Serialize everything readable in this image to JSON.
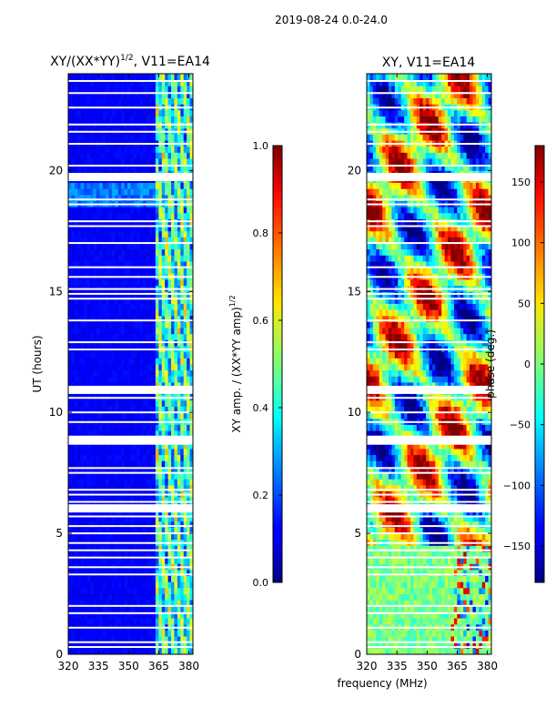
{
  "figure": {
    "suptitle": "2019-08-24 0.0-24.0",
    "xlabel": "frequency (MHz)"
  },
  "chart_data": [
    {
      "type": "heatmap",
      "title": "XY/(XX*YY)^{1/2}, V11=EA14",
      "title_main": "XY/(XX*YY)",
      "title_exp": "1/2",
      "title_tail": ", V11=EA14",
      "xlabel": "",
      "ylabel": "UT (hours)",
      "xlim": [
        320,
        382
      ],
      "ylim": [
        0,
        24
      ],
      "xticks": [
        320,
        335,
        350,
        365,
        380
      ],
      "yticks": [
        0,
        5,
        10,
        15,
        20
      ],
      "colorbar": {
        "label": "XY amp. / (XX*YY amp)^{1/2}",
        "label_main": "XY amp. / (XX*YY amp)",
        "label_exp": "1/2",
        "range": [
          0.0,
          1.0
        ],
        "ticks": [
          0.0,
          0.2,
          0.4,
          0.6,
          0.8,
          1.0
        ],
        "tick_labels": [
          "0.0",
          "0.2",
          "0.4",
          "0.6",
          "0.8",
          "1.0"
        ]
      },
      "colormap": "jet",
      "blank_hours": [
        0.3,
        0.5,
        1.1,
        1.7,
        2.0,
        3.3,
        3.6,
        4.0,
        4.3,
        4.6,
        5.0,
        5.3,
        5.7,
        5.9,
        6.1,
        6.3,
        6.6,
        6.8,
        7.5,
        7.7,
        8.7,
        9.0,
        9.6,
        10.0,
        10.6,
        10.8,
        11.0,
        12.6,
        12.9,
        13.8,
        14.7,
        14.9,
        15.1,
        15.6,
        16.0,
        17.0,
        17.7,
        17.9,
        18.6,
        18.8,
        19.6,
        19.8,
        20.2,
        21.1,
        21.6,
        21.9,
        22.6,
        23.2,
        23.7
      ],
      "blank_bands": [
        [
          19.6,
          19.9
        ],
        [
          10.8,
          11.1
        ],
        [
          8.7,
          9.0
        ],
        [
          5.9,
          6.2
        ]
      ]
    },
    {
      "type": "heatmap",
      "title": "XY, V11=EA14",
      "xlabel": "",
      "ylabel": "",
      "xlim": [
        320,
        382
      ],
      "ylim": [
        0,
        24
      ],
      "xticks": [
        320,
        335,
        350,
        365,
        380
      ],
      "yticks": [
        0,
        5,
        10,
        15,
        20
      ],
      "colorbar": {
        "label": "phase (deg.)",
        "range": [
          -180,
          180
        ],
        "ticks": [
          -150,
          -100,
          -50,
          0,
          50,
          100,
          150
        ],
        "tick_labels": [
          "−150",
          "−100",
          "−50",
          "0",
          "50",
          "100",
          "150"
        ]
      },
      "colormap": "jet",
      "blank_hours": [
        0.3,
        0.5,
        1.1,
        1.7,
        2.0,
        3.3,
        3.6,
        4.0,
        4.3,
        4.6,
        5.0,
        5.3,
        5.7,
        5.9,
        6.1,
        6.3,
        6.6,
        6.8,
        7.5,
        7.7,
        8.7,
        9.0,
        9.6,
        10.0,
        10.6,
        10.8,
        11.0,
        12.6,
        12.9,
        13.8,
        14.7,
        14.9,
        15.1,
        15.6,
        16.0,
        17.0,
        17.7,
        17.9,
        18.6,
        18.8,
        19.6,
        19.8,
        20.2,
        21.1,
        21.6,
        21.9,
        22.6,
        23.2,
        23.7
      ],
      "blank_bands": [
        [
          19.6,
          19.9
        ],
        [
          10.8,
          11.1
        ],
        [
          8.7,
          9.0
        ],
        [
          5.9,
          6.2
        ]
      ]
    }
  ]
}
